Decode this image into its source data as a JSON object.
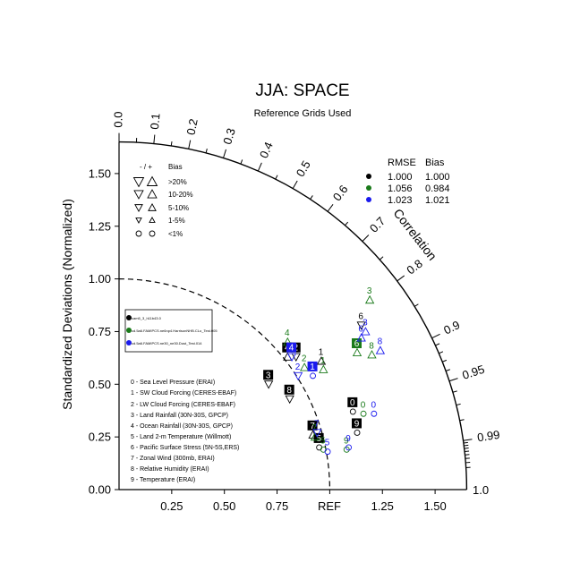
{
  "chart_data": {
    "type": "scatter",
    "kind": "taylor-diagram",
    "title": "JJA: SPACE",
    "subtitle": "Reference Grids Used",
    "ylabel": "Standardized Deviations (Normalized)",
    "correlation_label": "Correlation",
    "ref_label": "REF",
    "x_ticks": [
      "0.25",
      "0.50",
      "0.75",
      "1.25",
      "1.50"
    ],
    "x_tick_values": [
      0.25,
      0.5,
      0.75,
      1.25,
      1.5
    ],
    "y_ticks": [
      "0.00",
      "0.25",
      "0.50",
      "0.75",
      "1.00",
      "1.25",
      "1.50"
    ],
    "y_tick_values": [
      0,
      0.25,
      0.5,
      0.75,
      1.0,
      1.25,
      1.5
    ],
    "corner_label": "1.0",
    "axis_max": 1.65,
    "correlation_ticks": [
      "0.0",
      "0.1",
      "0.2",
      "0.3",
      "0.4",
      "0.5",
      "0.6",
      "0.7",
      "0.8",
      "0.9",
      "0.95",
      "0.99"
    ],
    "correlation_tick_values": [
      0.0,
      0.1,
      0.2,
      0.3,
      0.4,
      0.5,
      0.6,
      0.7,
      0.8,
      0.9,
      0.95,
      0.99
    ],
    "ref_arc_radius": 1.0,
    "bias_legend": {
      "header_sign": "- / +",
      "header_bias": "Bias",
      "rows": [
        ">20%",
        "10-20%",
        "5-10%",
        "1-5%",
        "<1%"
      ]
    },
    "rmse_table": {
      "header_rmse": "RMSE",
      "header_bias": "Bias",
      "rows": [
        {
          "color": "#000000",
          "rmse": "1.000",
          "bias": "1.000"
        },
        {
          "color": "#1a7a1a",
          "rmse": "1.056",
          "bias": "0.984"
        },
        {
          "color": "#1a1aee",
          "rmse": "1.023",
          "bias": "1.021"
        }
      ]
    },
    "case_legend": [
      {
        "color": "#000000",
        "label": "cam5_3_h11b43.0"
      },
      {
        "color": "#1a7a1a",
        "label": "cd.5a6.FAMIPCS.ne6np4.HarrisonNHB.CLo_Test.005"
      },
      {
        "color": "#1a1aee",
        "label": "cd.5a6.FAMIPCS.ne30_ne30.Dust_Test.014"
      }
    ],
    "variables": [
      "0 - Sea Level Pressure (ERAI)",
      "1 - SW Cloud Forcing (CERES-EBAF)",
      "2 - LW Cloud Forcing (CERES-EBAF)",
      "3 - Land Rainfall (30N-30S, GPCP)",
      "4 - Ocean Rainfall (30N-30S, GPCP)",
      "5 - Land 2-m Temperature (Willmott)",
      "6 - Pacific Surface Stress (5N-5S,ERS)",
      "7 - Zonal Wind (300mb, ERAI)",
      "8 - Relative Humidity (ERAI)",
      "9 - Temperature (ERAI)"
    ],
    "series": [
      {
        "color": "#000000",
        "points": [
          {
            "id": "0",
            "x": 1.11,
            "y": 0.37,
            "marker": "circle",
            "boxed": true
          },
          {
            "id": "1",
            "x": 0.96,
            "y": 0.61,
            "marker": "up",
            "boxed": false
          },
          {
            "id": "2",
            "x": 0.84,
            "y": 0.63,
            "marker": "down",
            "boxed": true
          },
          {
            "id": "3",
            "x": 0.71,
            "y": 0.5,
            "marker": "down",
            "boxed": true
          },
          {
            "id": "4",
            "x": 0.8,
            "y": 0.63,
            "marker": "up",
            "boxed": true
          },
          {
            "id": "5",
            "x": 0.95,
            "y": 0.2,
            "marker": "circle",
            "boxed": true
          },
          {
            "id": "6",
            "x": 1.15,
            "y": 0.78,
            "marker": "down",
            "boxed": false
          },
          {
            "id": "7",
            "x": 0.92,
            "y": 0.26,
            "marker": "up",
            "boxed": true
          },
          {
            "id": "8",
            "x": 0.81,
            "y": 0.43,
            "marker": "down",
            "boxed": true
          },
          {
            "id": "9",
            "x": 1.13,
            "y": 0.27,
            "marker": "circle",
            "boxed": true
          }
        ]
      },
      {
        "color": "#1a7a1a",
        "points": [
          {
            "id": "0",
            "x": 1.16,
            "y": 0.36,
            "marker": "circle",
            "boxed": false
          },
          {
            "id": "1",
            "x": 0.97,
            "y": 0.57,
            "marker": "up",
            "boxed": false
          },
          {
            "id": "2",
            "x": 0.88,
            "y": 0.58,
            "marker": "up",
            "boxed": false
          },
          {
            "id": "3",
            "x": 1.19,
            "y": 0.9,
            "marker": "up",
            "boxed": false
          },
          {
            "id": "4",
            "x": 0.8,
            "y": 0.7,
            "marker": "up",
            "boxed": false
          },
          {
            "id": "5",
            "x": 0.97,
            "y": 0.19,
            "marker": "circle",
            "boxed": false
          },
          {
            "id": "6",
            "x": 1.13,
            "y": 0.65,
            "marker": "up",
            "boxed": true
          },
          {
            "id": "7",
            "x": 0.93,
            "y": 0.25,
            "marker": "up",
            "boxed": false
          },
          {
            "id": "8",
            "x": 1.2,
            "y": 0.64,
            "marker": "up",
            "boxed": false
          },
          {
            "id": "9",
            "x": 1.08,
            "y": 0.19,
            "marker": "circle",
            "boxed": false
          }
        ]
      },
      {
        "color": "#1a1aee",
        "points": [
          {
            "id": "0",
            "x": 1.21,
            "y": 0.36,
            "marker": "circle",
            "boxed": false
          },
          {
            "id": "1",
            "x": 0.92,
            "y": 0.54,
            "marker": "circle",
            "boxed": true
          },
          {
            "id": "2",
            "x": 0.85,
            "y": 0.54,
            "marker": "down",
            "boxed": false
          },
          {
            "id": "3",
            "x": 1.17,
            "y": 0.75,
            "marker": "up",
            "boxed": false
          },
          {
            "id": "4",
            "x": 0.82,
            "y": 0.63,
            "marker": "down",
            "boxed": true
          },
          {
            "id": "5",
            "x": 0.99,
            "y": 0.18,
            "marker": "circle",
            "boxed": false
          },
          {
            "id": "6",
            "x": 1.15,
            "y": 0.72,
            "marker": "up",
            "boxed": false
          },
          {
            "id": "7",
            "x": 0.94,
            "y": 0.27,
            "marker": "down",
            "boxed": false
          },
          {
            "id": "8",
            "x": 1.24,
            "y": 0.66,
            "marker": "up",
            "boxed": false
          },
          {
            "id": "9",
            "x": 1.09,
            "y": 0.2,
            "marker": "circle",
            "boxed": false
          }
        ]
      }
    ]
  }
}
